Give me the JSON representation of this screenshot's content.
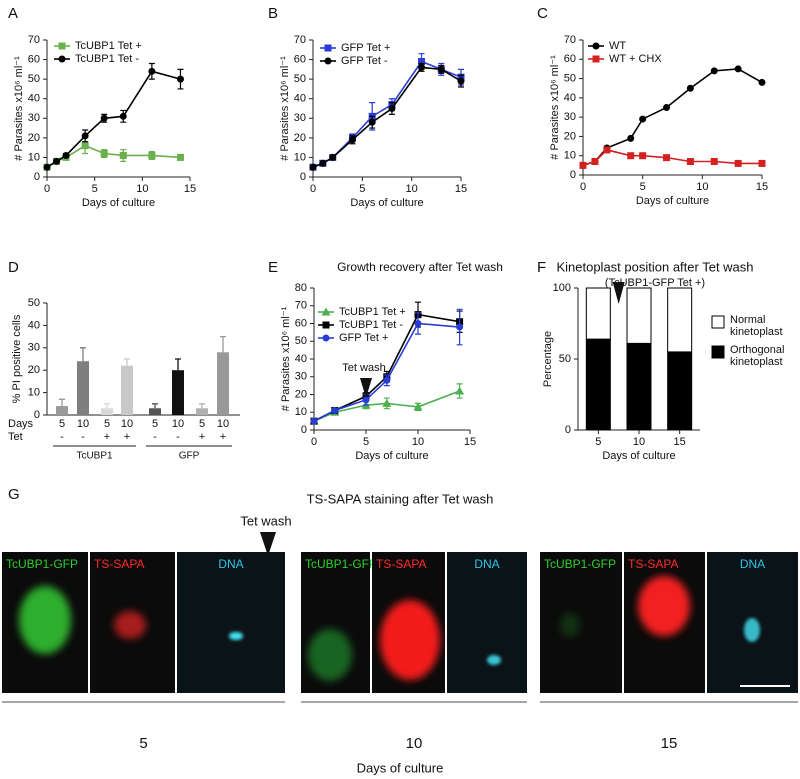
{
  "chart_data": [
    {
      "type": "line",
      "panel": "A",
      "xlabel": "Days of culture",
      "ylabel": "# Parasites x10⁶ ml⁻¹",
      "x": [
        0,
        1,
        2,
        4,
        6,
        8,
        11,
        14
      ],
      "xlim": [
        0,
        15
      ],
      "xticks": [
        0,
        5,
        10,
        15
      ],
      "ylim": [
        0,
        70
      ],
      "yticks": [
        0,
        10,
        20,
        30,
        40,
        50,
        60,
        70
      ],
      "legend": "upper left",
      "series": [
        {
          "name": "TcUBP1 Tet +",
          "color": "#6ab04c",
          "marker": "square",
          "values": [
            5,
            8,
            10,
            16,
            12,
            11,
            11,
            10
          ],
          "errors": [
            0,
            1,
            1,
            4,
            2,
            3,
            2,
            1
          ]
        },
        {
          "name": "TcUBP1 Tet -",
          "color": "#000000",
          "marker": "circle",
          "values": [
            5,
            8,
            11,
            21,
            30,
            31,
            54,
            50
          ],
          "errors": [
            0,
            1,
            1,
            3,
            2,
            3,
            4,
            5
          ]
        }
      ]
    },
    {
      "type": "line",
      "panel": "B",
      "xlabel": "Days of culture",
      "ylabel": "# Parasites x10⁶ ml⁻¹",
      "x": [
        0,
        1,
        2,
        4,
        6,
        8,
        11,
        13,
        15
      ],
      "xlim": [
        0,
        15
      ],
      "xticks": [
        0,
        5,
        10,
        15
      ],
      "ylim": [
        0,
        70
      ],
      "yticks": [
        0,
        10,
        20,
        30,
        40,
        50,
        60,
        70
      ],
      "legend": "upper left",
      "series": [
        {
          "name": "GFP Tet +",
          "color": "#2a3bd6",
          "marker": "square",
          "values": [
            5,
            7,
            10,
            20,
            31,
            37,
            59,
            55,
            51
          ],
          "errors": [
            0,
            1,
            1,
            2,
            7,
            3,
            4,
            3,
            4
          ]
        },
        {
          "name": "GFP Tet -",
          "color": "#000000",
          "marker": "circle",
          "values": [
            5,
            7,
            10,
            19,
            28,
            35,
            56,
            55,
            49
          ],
          "errors": [
            0,
            1,
            1,
            2,
            3,
            3,
            2,
            2,
            3
          ]
        }
      ]
    },
    {
      "type": "line",
      "panel": "C",
      "xlabel": "Days of culture",
      "ylabel": "# Parasites x10⁶ ml⁻¹",
      "x": [
        0,
        1,
        2,
        4,
        5,
        7,
        9,
        11,
        13,
        15
      ],
      "xlim": [
        0,
        15
      ],
      "xticks": [
        0,
        5,
        10,
        15
      ],
      "ylim": [
        0,
        70
      ],
      "yticks": [
        0,
        10,
        20,
        30,
        40,
        50,
        60,
        70
      ],
      "legend": "upper left",
      "series": [
        {
          "name": "WT",
          "color": "#000000",
          "marker": "circle",
          "values": [
            5,
            7,
            14,
            19,
            29,
            35,
            45,
            54,
            55,
            48
          ]
        },
        {
          "name": "WT + CHX",
          "color": "#d42020",
          "marker": "square",
          "values": [
            5,
            7,
            13,
            10,
            10,
            9,
            7,
            7,
            6,
            6
          ]
        }
      ]
    },
    {
      "type": "bar",
      "panel": "D",
      "ylabel": "% PI  positive cells",
      "ylim": [
        0,
        50
      ],
      "yticks": [
        0,
        10,
        20,
        30,
        40,
        50
      ],
      "row_labels": [
        "Days",
        "Tet"
      ],
      "categories": [
        "5",
        "10",
        "5",
        "10",
        "5",
        "10",
        "5",
        "10"
      ],
      "tet": [
        "-",
        "-",
        "+",
        "+",
        "-",
        "-",
        "+",
        "+"
      ],
      "groups": [
        "TcUBP1",
        "GFP"
      ],
      "values": [
        4,
        24,
        3,
        22,
        3,
        20,
        3,
        28
      ],
      "errors": [
        3,
        6,
        2,
        3,
        2,
        5,
        2,
        7
      ],
      "colors": [
        "#9a9a9a",
        "#7f7f7f",
        "#d9d9d9",
        "#c8c8c8",
        "#555555",
        "#111111",
        "#b0b0b0",
        "#999999"
      ]
    },
    {
      "type": "line",
      "panel": "E",
      "title": "Growth recovery after Tet wash",
      "xlabel": "Days of culture",
      "ylabel": "# Parasites x10⁶ ml⁻¹",
      "x": [
        0,
        2,
        5,
        7,
        10,
        14
      ],
      "xlim": [
        0,
        15
      ],
      "xticks": [
        0,
        5,
        10,
        15
      ],
      "ylim": [
        0,
        80
      ],
      "yticks": [
        0,
        10,
        20,
        30,
        40,
        50,
        60,
        70,
        80
      ],
      "legend": "upper left",
      "annotation": {
        "text": "Tet wash",
        "x": 5
      },
      "series": [
        {
          "name": "TcUBP1 Tet +",
          "color": "#4caf50",
          "marker": "triangle",
          "values": [
            5,
            10,
            14,
            15,
            13,
            22
          ],
          "errors": [
            0,
            1,
            2,
            3,
            2,
            4
          ]
        },
        {
          "name": "TcUBP1 Tet -",
          "color": "#000000",
          "marker": "square",
          "values": [
            5,
            11,
            19,
            30,
            65,
            61
          ],
          "errors": [
            0,
            1,
            2,
            3,
            7,
            6
          ]
        },
        {
          "name": "GFP Tet +",
          "color": "#2a3bd6",
          "marker": "circle",
          "values": [
            5,
            11,
            17,
            28,
            60,
            58
          ],
          "errors": [
            0,
            1,
            3,
            3,
            6,
            10
          ]
        }
      ]
    },
    {
      "type": "bar",
      "stacked": true,
      "panel": "F",
      "title": "Kinetoplast position after Tet wash",
      "subtitle": "(TcUBP1-GFP Tet +)",
      "xlabel": "Days of culture",
      "ylabel": "Percentage",
      "categories": [
        "5",
        "10",
        "15"
      ],
      "ylim": [
        0,
        100
      ],
      "yticks": [
        0,
        50,
        100
      ],
      "series": [
        {
          "name": "Normal kinetoplast",
          "color": "#ffffff",
          "values": [
            36,
            39,
            45
          ]
        },
        {
          "name": "Orthogonal kinetoplast",
          "color": "#000000",
          "values": [
            64,
            61,
            55
          ]
        }
      ]
    }
  ],
  "panel_g": {
    "panel": "G",
    "title": "TS-SAPA staining after Tet wash",
    "annotation": "Tet wash",
    "xlabel": "Days of culture",
    "groups": [
      {
        "label": "5",
        "channels": [
          "TcUBP1-GFP",
          "TS-SAPA",
          "DNA"
        ]
      },
      {
        "label": "10",
        "channels": [
          "TcUBP1-GFP",
          "TS-SAPA",
          "DNA"
        ]
      },
      {
        "label": "15",
        "channels": [
          "TcUBP1-GFP",
          "TS-SAPA",
          "DNA"
        ]
      }
    ]
  }
}
